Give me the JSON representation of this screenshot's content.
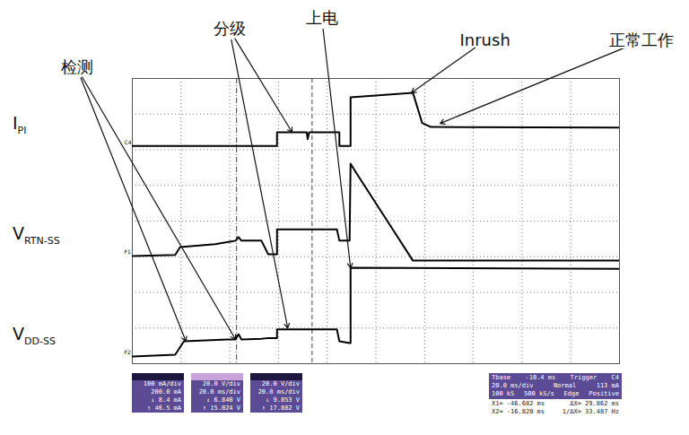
{
  "chart_data": {
    "type": "line",
    "xlim": [
      0,
      10
    ],
    "ylim": [
      0,
      8
    ],
    "xticks": [
      0,
      1,
      2,
      3,
      4,
      5,
      6,
      7,
      8,
      9,
      10
    ],
    "yticks": [
      0,
      1,
      2,
      3,
      4,
      5,
      6,
      7,
      8
    ],
    "grid": true,
    "tick_labels": false,
    "series": [
      {
        "name": "I",
        "name_sub": "PI",
        "marker_label": "C4",
        "color": "#000000",
        "x": [
          0,
          2.97,
          2.97,
          3.58,
          3.6,
          3.63,
          4.25,
          4.25,
          4.48,
          4.48,
          5.76,
          5.95,
          6.13,
          10
        ],
        "values": [
          6.11,
          6.11,
          6.49,
          6.49,
          6.3,
          6.49,
          6.49,
          6.11,
          6.11,
          7.47,
          7.6,
          6.75,
          6.64,
          6.62
        ]
      },
      {
        "name": "V",
        "name_sub": "RTN-SS",
        "marker_label": "F1",
        "color": "#000000",
        "x": [
          0,
          0.88,
          0.98,
          1.7,
          2.12,
          2.18,
          2.24,
          2.65,
          2.79,
          2.97,
          2.97,
          4.2,
          4.25,
          4.46,
          4.48,
          4.57,
          5.76,
          10
        ],
        "values": [
          3.02,
          3.05,
          3.27,
          3.35,
          3.45,
          3.55,
          3.45,
          3.45,
          3.07,
          3.07,
          3.77,
          3.77,
          3.45,
          3.45,
          5.61,
          5.41,
          2.89,
          2.89
        ]
      },
      {
        "name": "V",
        "name_sub": "DD-SS",
        "marker_label": "F2",
        "color": "#000000",
        "x": [
          0,
          0.88,
          1.06,
          1.95,
          2.12,
          2.18,
          2.24,
          2.65,
          2.79,
          2.97,
          2.97,
          4.2,
          4.25,
          4.46,
          4.48,
          4.48,
          10
        ],
        "values": [
          0.2,
          0.25,
          0.63,
          0.68,
          0.68,
          0.83,
          0.68,
          0.7,
          0.72,
          0.72,
          0.96,
          0.96,
          0.63,
          0.58,
          0.58,
          2.69,
          2.66
        ]
      }
    ],
    "cursors": [
      2.14,
      3.69
    ],
    "annotations": [
      {
        "text": "检测",
        "x": -1.14,
        "y": 8.3,
        "targets": [
          [
            1.1,
            0.63
          ],
          [
            2.12,
            0.68
          ]
        ]
      },
      {
        "text": "分级",
        "x": 1.99,
        "y": 9.38,
        "targets": [
          [
            3.28,
            6.49
          ],
          [
            3.19,
            1.0
          ]
        ]
      },
      {
        "text": "上电",
        "x": 3.89,
        "y": 9.69,
        "targets": [
          [
            4.48,
            2.69
          ]
        ]
      },
      {
        "text": "Inrush",
        "x": 7.24,
        "y": 9.06,
        "targets": [
          [
            5.73,
            7.6
          ]
        ]
      },
      {
        "text": "正常工作",
        "x": 10.46,
        "y": 9.06,
        "targets": [
          [
            6.32,
            6.74
          ]
        ]
      }
    ],
    "info_panels": [
      {
        "lines": [
          "100 mA/div",
          "200.0 mA",
          "↓ 8.4 mA",
          "↑ 46.5 mA"
        ]
      },
      {
        "lines": [
          "20.0 V/div",
          "20.0 ms/div",
          "↓ 6.840 V",
          "↑ 15.024 V"
        ]
      },
      {
        "lines": [
          "20.0 V/div",
          "20.0 ms/div",
          "↓ 9.853 V",
          "↑ 17.882 V"
        ]
      }
    ],
    "timebase_panel": {
      "rows": [
        [
          "Tbase",
          "-10.4 ms",
          "Trigger",
          "C4"
        ],
        [
          "20.0 ms/div",
          "Normal",
          "113 mA"
        ],
        [
          "100 kS",
          "500 kS/s",
          "Edge",
          "Positive"
        ]
      ],
      "cursor_rows": [
        [
          "X1= -46.682 ms",
          "ΔX= 29.862 ms"
        ],
        [
          "X2= -16.820 ms",
          "1/ΔX= 33.487 Hz"
        ]
      ]
    }
  }
}
